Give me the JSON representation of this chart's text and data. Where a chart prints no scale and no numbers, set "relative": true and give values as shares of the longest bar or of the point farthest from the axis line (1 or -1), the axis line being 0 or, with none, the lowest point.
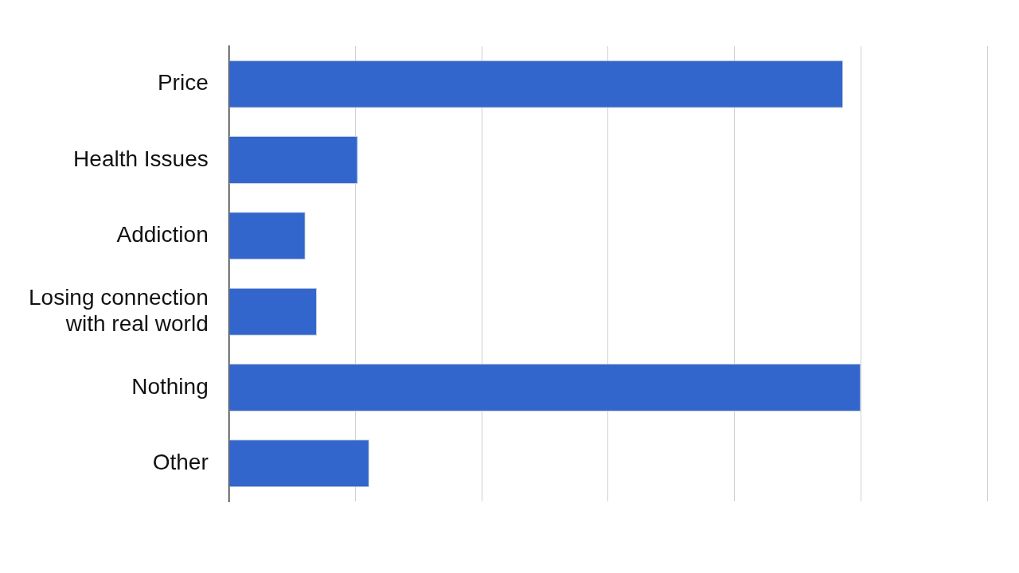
{
  "chart_data": {
    "type": "bar",
    "orientation": "horizontal",
    "relative": true,
    "grid": "x",
    "categories": [
      "Price",
      "Health Issues",
      "Addiction",
      "Losing connection with real world",
      "Nothing",
      "Other"
    ],
    "values": [
      0.972,
      0.204,
      0.121,
      0.139,
      1,
      0.222
    ],
    "color": "#3366cc"
  }
}
